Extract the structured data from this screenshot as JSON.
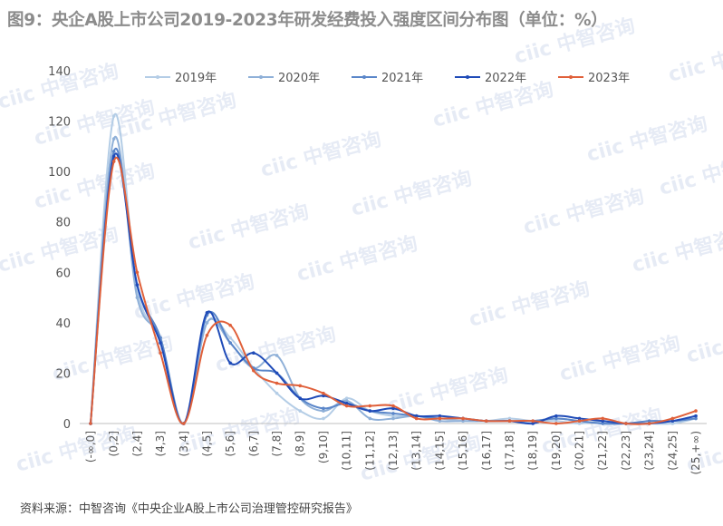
{
  "title": "图9：央企A股上市公司2019-2023年研发经费投入强度区间分布图（单位：%）",
  "source": "资料来源：中智咨询《中央企业A股上市公司治理管控研究报告》",
  "watermark": "ciic 中智咨询",
  "chart_data": {
    "type": "line",
    "title": "图9：央企A股上市公司2019-2023年研发经费投入强度区间分布图（单位：%）",
    "xlabel": "",
    "ylabel": "",
    "ylim": [
      0,
      140
    ],
    "yticks": [
      0,
      20,
      40,
      60,
      80,
      100,
      120,
      140
    ],
    "grid": false,
    "legend_position": "top",
    "categories": [
      "(-∞,0]",
      "(0,2]",
      "(2,4]",
      "(4,3]",
      "(3,4]",
      "(4,5]",
      "(5,6]",
      "(6,7]",
      "(7,8]",
      "(8,9]",
      "(9,10]",
      "(10,11]",
      "(11,12]",
      "(12,13]",
      "(13,14]",
      "(14,15]",
      "(15,16]",
      "(16,17]",
      "(17,18]",
      "(18,19]",
      "(19,20]",
      "(20,21]",
      "(21,22]",
      "(22,23]",
      "(23,24]",
      "(24,25]",
      "(25,+∞)"
    ],
    "series": [
      {
        "name": "2019年",
        "color": "#b4cde6",
        "values": [
          0,
          122,
          53,
          33,
          0,
          40,
          34,
          22,
          12,
          5,
          2,
          10,
          5,
          3,
          3,
          2,
          1,
          1,
          2,
          1,
          1,
          0,
          1,
          0,
          0,
          0,
          2
        ]
      },
      {
        "name": "2020年",
        "color": "#8fb0d8",
        "values": [
          0,
          113,
          50,
          34,
          0,
          40,
          32,
          22,
          27,
          10,
          5,
          9,
          2,
          2,
          3,
          1,
          1,
          1,
          1,
          1,
          2,
          1,
          0,
          0,
          0,
          1,
          3
        ]
      },
      {
        "name": "2021年",
        "color": "#5a86c9",
        "values": [
          0,
          108,
          55,
          34,
          0,
          43,
          32,
          22,
          20,
          10,
          6,
          8,
          5,
          4,
          3,
          2,
          2,
          1,
          1,
          1,
          2,
          1,
          0,
          0,
          1,
          1,
          2
        ]
      },
      {
        "name": "2022年",
        "color": "#1f4bb8",
        "values": [
          0,
          106,
          55,
          32,
          0,
          44,
          24,
          28,
          20,
          10,
          11,
          8,
          5,
          6,
          3,
          3,
          2,
          1,
          1,
          0,
          3,
          2,
          1,
          0,
          0,
          1,
          3
        ]
      },
      {
        "name": "2023年",
        "color": "#e0603a",
        "values": [
          0,
          104,
          60,
          28,
          0,
          35,
          39,
          21,
          16,
          15,
          12,
          7,
          7,
          7,
          2,
          2,
          2,
          1,
          1,
          1,
          0,
          1,
          2,
          0,
          0,
          2,
          5
        ]
      }
    ]
  }
}
